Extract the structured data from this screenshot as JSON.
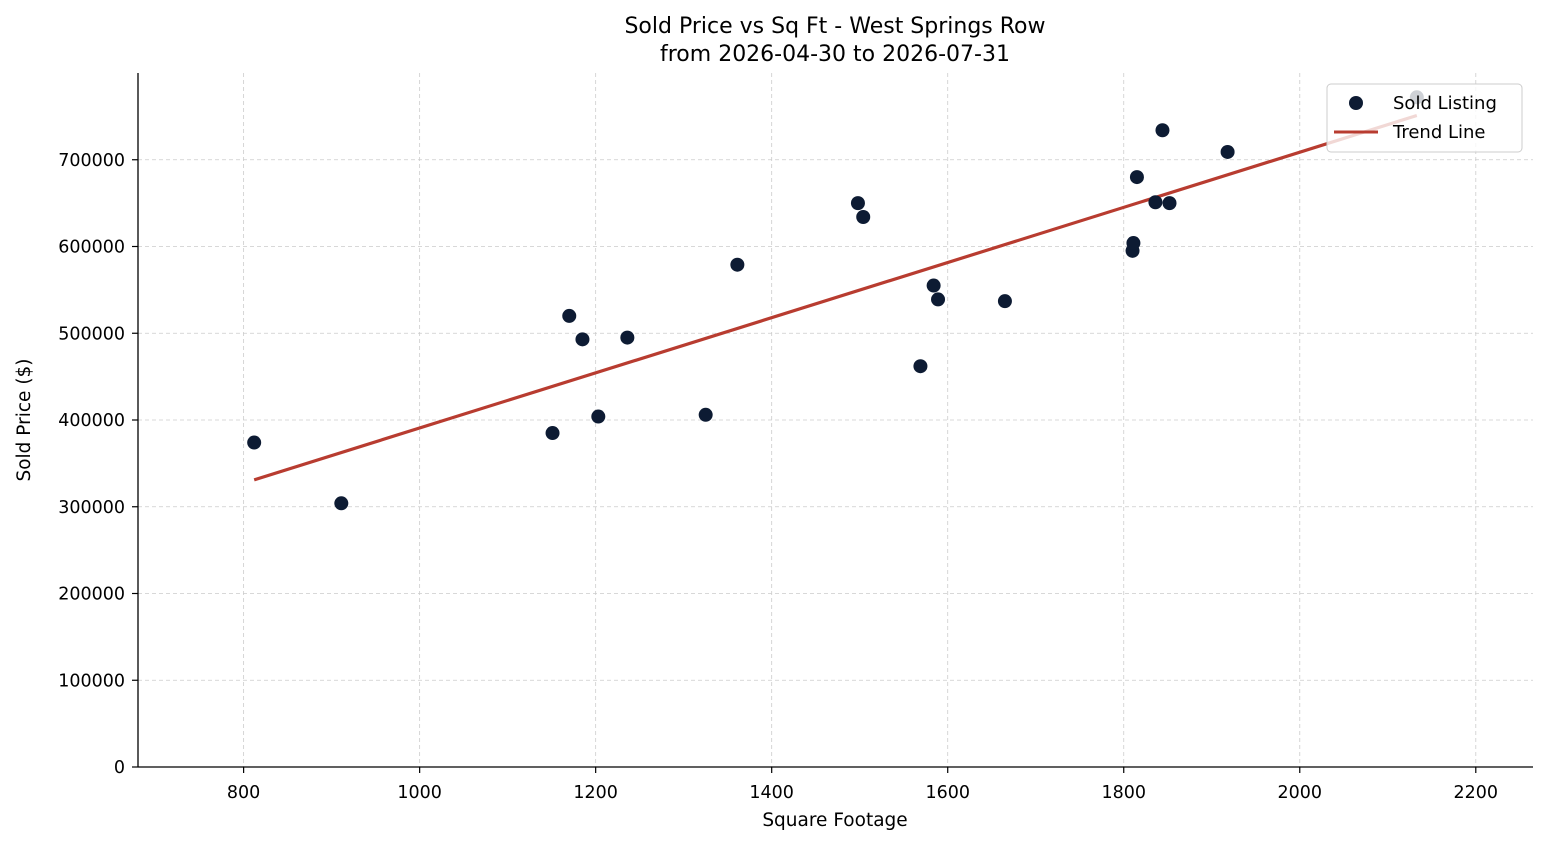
{
  "chart_data": {
    "type": "scatter",
    "title_line1": "Sold Price vs Sq Ft - West Springs Row",
    "title_line2": "from 2026-04-30 to 2026-07-31",
    "xlabel": "Square Footage",
    "ylabel": "Sold Price ($)",
    "xlim": [
      680,
      2265
    ],
    "ylim": [
      0,
      800000
    ],
    "xticks": [
      800,
      1000,
      1200,
      1400,
      1600,
      1800,
      2000,
      2200
    ],
    "yticks": [
      0,
      100000,
      200000,
      300000,
      400000,
      500000,
      600000,
      700000
    ],
    "xtick_labels": [
      "800",
      "1000",
      "1200",
      "1400",
      "1600",
      "1800",
      "2000",
      "2200"
    ],
    "ytick_labels": [
      "0",
      "100000",
      "200000",
      "300000",
      "400000",
      "500000",
      "600000",
      "700000"
    ],
    "grid": true,
    "legend_position": "top-right",
    "series": [
      {
        "name": "Sold Listing",
        "kind": "scatter",
        "color": "#0d1b33",
        "points": [
          {
            "x": 812,
            "y": 374000
          },
          {
            "x": 911,
            "y": 304000
          },
          {
            "x": 1151,
            "y": 385000
          },
          {
            "x": 1170,
            "y": 520000
          },
          {
            "x": 1185,
            "y": 493000
          },
          {
            "x": 1203,
            "y": 404000
          },
          {
            "x": 1236,
            "y": 495000
          },
          {
            "x": 1325,
            "y": 406000
          },
          {
            "x": 1361,
            "y": 579000
          },
          {
            "x": 1498,
            "y": 650000
          },
          {
            "x": 1504,
            "y": 634000
          },
          {
            "x": 1569,
            "y": 462000
          },
          {
            "x": 1584,
            "y": 555000
          },
          {
            "x": 1589,
            "y": 539000
          },
          {
            "x": 1665,
            "y": 537000
          },
          {
            "x": 1810,
            "y": 595000
          },
          {
            "x": 1811,
            "y": 604000
          },
          {
            "x": 1815,
            "y": 680000
          },
          {
            "x": 1836,
            "y": 651000
          },
          {
            "x": 1844,
            "y": 734000
          },
          {
            "x": 1852,
            "y": 650000
          },
          {
            "x": 1918,
            "y": 709000
          },
          {
            "x": 2133,
            "y": 772000
          }
        ]
      },
      {
        "name": "Trend Line",
        "kind": "line",
        "color": "#b83c30",
        "points": [
          {
            "x": 812,
            "y": 331000
          },
          {
            "x": 2133,
            "y": 751000
          }
        ]
      }
    ]
  }
}
